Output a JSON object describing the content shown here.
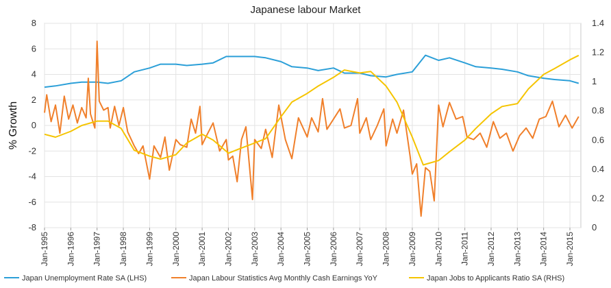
{
  "chart_data": {
    "type": "line",
    "title": "Japanese labour Market",
    "ylabel": "% Growth",
    "ylabel_right": "",
    "ylim": [
      -8,
      8
    ],
    "yticks": [
      "8",
      "6",
      "4",
      "2",
      "0",
      "-2",
      "-4",
      "-6",
      "-8"
    ],
    "ylim_right": [
      0,
      1.4
    ],
    "yticks_right": [
      "1.4",
      "1.2",
      "1",
      "0.8",
      "0.6",
      "0.4",
      "0.2",
      "0"
    ],
    "xlim": [
      "1995-01",
      "2015-06"
    ],
    "xticks": [
      "Jan-1995",
      "Jan-1996",
      "Jan-1997",
      "Jan-1998",
      "Jan-1999",
      "Jan-2000",
      "Jan-2001",
      "Jan-2002",
      "Jan-2003",
      "Jan-2004",
      "Jan-2005",
      "Jan-2006",
      "Jan-2007",
      "Jan-2008",
      "Jan-2009",
      "Jan-2010",
      "Jan-2011",
      "Jan-2012",
      "Jan-2013",
      "Jan-2014",
      "Jan-2015"
    ],
    "grid": true,
    "legend": "bottom",
    "series": [
      {
        "name": "Japan Unemployment Rate SA (LHS)",
        "axis": "left",
        "color": "#2b9fd8",
        "points": [
          [
            "1995-01",
            3.0
          ],
          [
            "1995-06",
            3.1
          ],
          [
            "1996-01",
            3.3
          ],
          [
            "1996-06",
            3.4
          ],
          [
            "1997-01",
            3.4
          ],
          [
            "1997-06",
            3.3
          ],
          [
            "1997-12",
            3.5
          ],
          [
            "1998-06",
            4.2
          ],
          [
            "1999-01",
            4.5
          ],
          [
            "1999-06",
            4.8
          ],
          [
            "2000-01",
            4.8
          ],
          [
            "2000-06",
            4.7
          ],
          [
            "2001-01",
            4.8
          ],
          [
            "2001-06",
            4.9
          ],
          [
            "2001-12",
            5.4
          ],
          [
            "2002-06",
            5.4
          ],
          [
            "2003-01",
            5.4
          ],
          [
            "2003-06",
            5.3
          ],
          [
            "2004-01",
            5.0
          ],
          [
            "2004-06",
            4.6
          ],
          [
            "2005-01",
            4.5
          ],
          [
            "2005-06",
            4.3
          ],
          [
            "2006-01",
            4.5
          ],
          [
            "2006-06",
            4.1
          ],
          [
            "2007-01",
            4.1
          ],
          [
            "2007-06",
            3.9
          ],
          [
            "2008-01",
            3.8
          ],
          [
            "2008-06",
            4.0
          ],
          [
            "2009-01",
            4.2
          ],
          [
            "2009-07",
            5.5
          ],
          [
            "2010-01",
            5.1
          ],
          [
            "2010-06",
            5.3
          ],
          [
            "2011-01",
            4.9
          ],
          [
            "2011-06",
            4.6
          ],
          [
            "2012-01",
            4.5
          ],
          [
            "2012-06",
            4.4
          ],
          [
            "2013-01",
            4.2
          ],
          [
            "2013-06",
            3.9
          ],
          [
            "2014-01",
            3.7
          ],
          [
            "2014-06",
            3.6
          ],
          [
            "2015-01",
            3.5
          ],
          [
            "2015-05",
            3.3
          ]
        ]
      },
      {
        "name": "Japan Labour Statistics Avg Monthly Cash Earnings YoY",
        "axis": "left",
        "color": "#f07f2a",
        "points": [
          [
            "1995-01",
            1.0
          ],
          [
            "1995-02",
            2.4
          ],
          [
            "1995-04",
            0.3
          ],
          [
            "1995-06",
            1.6
          ],
          [
            "1995-08",
            -0.6
          ],
          [
            "1995-10",
            2.3
          ],
          [
            "1995-12",
            0.5
          ],
          [
            "1996-02",
            1.6
          ],
          [
            "1996-04",
            0.2
          ],
          [
            "1996-06",
            1.4
          ],
          [
            "1996-08",
            0.6
          ],
          [
            "1996-09",
            3.7
          ],
          [
            "1996-10",
            0.9
          ],
          [
            "1996-12",
            -0.2
          ],
          [
            "1997-01",
            6.6
          ],
          [
            "1997-02",
            1.9
          ],
          [
            "1997-04",
            1.2
          ],
          [
            "1997-06",
            1.4
          ],
          [
            "1997-07",
            -0.2
          ],
          [
            "1997-09",
            1.5
          ],
          [
            "1997-11",
            0.0
          ],
          [
            "1998-01",
            1.4
          ],
          [
            "1998-03",
            -0.5
          ],
          [
            "1998-06",
            -1.6
          ],
          [
            "1998-08",
            -2.2
          ],
          [
            "1998-10",
            -1.6
          ],
          [
            "1999-01",
            -4.2
          ],
          [
            "1999-03",
            -1.6
          ],
          [
            "1999-06",
            -2.5
          ],
          [
            "1999-08",
            -0.9
          ],
          [
            "1999-10",
            -3.5
          ],
          [
            "2000-01",
            -1.1
          ],
          [
            "2000-03",
            -1.5
          ],
          [
            "2000-06",
            -1.7
          ],
          [
            "2000-08",
            0.5
          ],
          [
            "2000-10",
            -0.6
          ],
          [
            "2000-12",
            1.5
          ],
          [
            "2001-01",
            -1.5
          ],
          [
            "2001-03",
            -0.8
          ],
          [
            "2001-06",
            0.2
          ],
          [
            "2001-09",
            -2.0
          ],
          [
            "2001-12",
            -1.1
          ],
          [
            "2002-01",
            -2.7
          ],
          [
            "2002-03",
            -2.4
          ],
          [
            "2002-05",
            -4.4
          ],
          [
            "2002-07",
            -1.1
          ],
          [
            "2002-09",
            -0.1
          ],
          [
            "2002-12",
            -5.8
          ],
          [
            "2003-01",
            -1.1
          ],
          [
            "2003-04",
            -1.8
          ],
          [
            "2003-06",
            -0.3
          ],
          [
            "2003-09",
            -2.5
          ],
          [
            "2003-12",
            1.6
          ],
          [
            "2004-03",
            -1.1
          ],
          [
            "2004-06",
            -2.6
          ],
          [
            "2004-09",
            0.6
          ],
          [
            "2005-01",
            -0.9
          ],
          [
            "2005-03",
            0.6
          ],
          [
            "2005-06",
            -0.5
          ],
          [
            "2005-08",
            2.1
          ],
          [
            "2005-10",
            -0.3
          ],
          [
            "2006-01",
            0.5
          ],
          [
            "2006-04",
            1.3
          ],
          [
            "2006-06",
            -0.2
          ],
          [
            "2006-09",
            0.0
          ],
          [
            "2006-12",
            2.1
          ],
          [
            "2007-01",
            -0.6
          ],
          [
            "2007-04",
            0.6
          ],
          [
            "2007-06",
            -1.1
          ],
          [
            "2007-09",
            0.0
          ],
          [
            "2007-12",
            1.3
          ],
          [
            "2008-01",
            -1.6
          ],
          [
            "2008-04",
            0.5
          ],
          [
            "2008-06",
            -0.6
          ],
          [
            "2008-09",
            1.2
          ],
          [
            "2008-12",
            -2.4
          ],
          [
            "2009-01",
            -3.8
          ],
          [
            "2009-03",
            -3.0
          ],
          [
            "2009-05",
            -7.1
          ],
          [
            "2009-07",
            -3.3
          ],
          [
            "2009-09",
            -3.6
          ],
          [
            "2009-11",
            -5.9
          ],
          [
            "2010-01",
            1.6
          ],
          [
            "2010-03",
            -0.1
          ],
          [
            "2010-06",
            1.8
          ],
          [
            "2010-09",
            0.5
          ],
          [
            "2010-12",
            0.7
          ],
          [
            "2011-02",
            -0.9
          ],
          [
            "2011-05",
            -1.1
          ],
          [
            "2011-08",
            -0.6
          ],
          [
            "2011-11",
            -1.7
          ],
          [
            "2012-02",
            0.3
          ],
          [
            "2012-05",
            -1.0
          ],
          [
            "2012-08",
            -0.6
          ],
          [
            "2012-11",
            -2.0
          ],
          [
            "2013-02",
            -0.8
          ],
          [
            "2013-05",
            -0.2
          ],
          [
            "2013-08",
            -1.0
          ],
          [
            "2013-11",
            0.5
          ],
          [
            "2014-02",
            0.7
          ],
          [
            "2014-05",
            1.9
          ],
          [
            "2014-08",
            -0.1
          ],
          [
            "2014-11",
            0.8
          ],
          [
            "2015-02",
            -0.2
          ],
          [
            "2015-05",
            0.7
          ]
        ]
      },
      {
        "name": "Japan Jobs to Applicants Ratio SA (RHS)",
        "axis": "right",
        "color": "#f5c400",
        "points": [
          [
            "1995-01",
            0.64
          ],
          [
            "1995-06",
            0.62
          ],
          [
            "1996-01",
            0.66
          ],
          [
            "1996-06",
            0.7
          ],
          [
            "1997-01",
            0.73
          ],
          [
            "1997-06",
            0.73
          ],
          [
            "1997-12",
            0.68
          ],
          [
            "1998-06",
            0.53
          ],
          [
            "1999-01",
            0.49
          ],
          [
            "1999-06",
            0.47
          ],
          [
            "2000-01",
            0.5
          ],
          [
            "2000-06",
            0.58
          ],
          [
            "2001-01",
            0.64
          ],
          [
            "2001-06",
            0.6
          ],
          [
            "2002-01",
            0.51
          ],
          [
            "2002-06",
            0.54
          ],
          [
            "2003-01",
            0.58
          ],
          [
            "2003-06",
            0.61
          ],
          [
            "2004-01",
            0.76
          ],
          [
            "2004-06",
            0.86
          ],
          [
            "2005-01",
            0.92
          ],
          [
            "2005-06",
            0.97
          ],
          [
            "2006-01",
            1.03
          ],
          [
            "2006-06",
            1.08
          ],
          [
            "2007-01",
            1.06
          ],
          [
            "2007-06",
            1.07
          ],
          [
            "2008-01",
            0.97
          ],
          [
            "2008-06",
            0.86
          ],
          [
            "2009-01",
            0.62
          ],
          [
            "2009-06",
            0.43
          ],
          [
            "2010-01",
            0.46
          ],
          [
            "2010-06",
            0.52
          ],
          [
            "2011-01",
            0.6
          ],
          [
            "2011-06",
            0.68
          ],
          [
            "2012-01",
            0.78
          ],
          [
            "2012-06",
            0.83
          ],
          [
            "2013-01",
            0.85
          ],
          [
            "2013-06",
            0.95
          ],
          [
            "2014-01",
            1.05
          ],
          [
            "2014-06",
            1.09
          ],
          [
            "2015-01",
            1.15
          ],
          [
            "2015-05",
            1.18
          ]
        ]
      }
    ]
  }
}
